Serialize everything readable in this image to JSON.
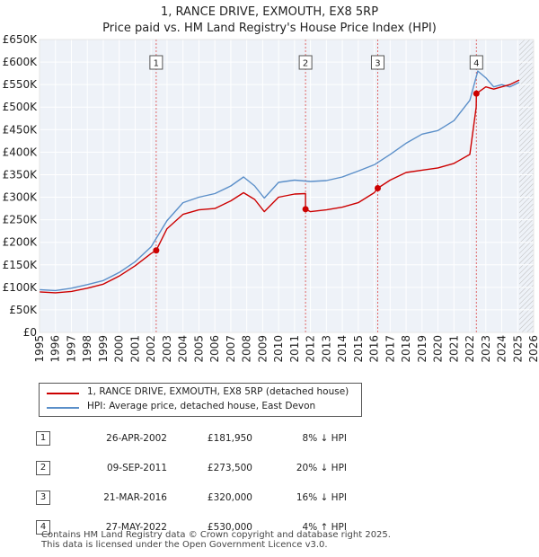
{
  "chart_data": {
    "type": "line",
    "title": "1, RANCE DRIVE, EXMOUTH, EX8 5RP",
    "subtitle": "Price paid vs. HM Land Registry's House Price Index (HPI)",
    "x_range": [
      1995,
      2026
    ],
    "x_ticks": [
      "1995",
      "1996",
      "1997",
      "1998",
      "1999",
      "2000",
      "2001",
      "2002",
      "2003",
      "2004",
      "2005",
      "2006",
      "2007",
      "2008",
      "2009",
      "2010",
      "2011",
      "2012",
      "2013",
      "2014",
      "2015",
      "2016",
      "2017",
      "2018",
      "2019",
      "2020",
      "2021",
      "2022",
      "2023",
      "2024",
      "2025",
      "2026"
    ],
    "y_range": [
      0,
      650000
    ],
    "y_ticks": [
      {
        "value": 0,
        "label": "£0"
      },
      {
        "value": 50000,
        "label": "£50K"
      },
      {
        "value": 100000,
        "label": "£100K"
      },
      {
        "value": 150000,
        "label": "£150K"
      },
      {
        "value": 200000,
        "label": "£200K"
      },
      {
        "value": 250000,
        "label": "£250K"
      },
      {
        "value": 300000,
        "label": "£300K"
      },
      {
        "value": 350000,
        "label": "£350K"
      },
      {
        "value": 400000,
        "label": "£400K"
      },
      {
        "value": 450000,
        "label": "£450K"
      },
      {
        "value": 500000,
        "label": "£500K"
      },
      {
        "value": 550000,
        "label": "£550K"
      },
      {
        "value": 600000,
        "label": "£600K"
      },
      {
        "value": 650000,
        "label": "£650K"
      }
    ],
    "grid": true,
    "future_hatch_from": 2025.1,
    "series": [
      {
        "name": "1, RANCE DRIVE, EXMOUTH, EX8 5RP (detached house)",
        "color": "#cc0000",
        "points": [
          [
            1995.0,
            90000
          ],
          [
            1996.0,
            88000
          ],
          [
            1997.0,
            91000
          ],
          [
            1998.0,
            98000
          ],
          [
            1999.0,
            107000
          ],
          [
            2000.0,
            125000
          ],
          [
            2001.0,
            148000
          ],
          [
            2002.0,
            175000
          ],
          [
            2002.32,
            181950
          ],
          [
            2003.0,
            230000
          ],
          [
            2004.0,
            262000
          ],
          [
            2005.0,
            272000
          ],
          [
            2006.0,
            275000
          ],
          [
            2007.0,
            292000
          ],
          [
            2007.8,
            310000
          ],
          [
            2008.5,
            295000
          ],
          [
            2009.1,
            268000
          ],
          [
            2010.0,
            300000
          ],
          [
            2011.0,
            307000
          ],
          [
            2011.69,
            308000
          ],
          [
            2011.69,
            273500
          ],
          [
            2012.0,
            268000
          ],
          [
            2013.0,
            272000
          ],
          [
            2014.0,
            278000
          ],
          [
            2015.0,
            288000
          ],
          [
            2016.0,
            310000
          ],
          [
            2016.22,
            320000
          ],
          [
            2017.0,
            338000
          ],
          [
            2018.0,
            355000
          ],
          [
            2019.0,
            360000
          ],
          [
            2020.0,
            365000
          ],
          [
            2021.0,
            375000
          ],
          [
            2022.0,
            395000
          ],
          [
            2022.4,
            500000
          ],
          [
            2022.41,
            530000
          ],
          [
            2023.0,
            545000
          ],
          [
            2023.5,
            540000
          ],
          [
            2024.0,
            545000
          ],
          [
            2024.5,
            550000
          ],
          [
            2025.1,
            560000
          ]
        ]
      },
      {
        "name": "HPI: Average price, detached house, East Devon",
        "color": "#5b8fc9",
        "points": [
          [
            1995.0,
            95000
          ],
          [
            1996.0,
            93000
          ],
          [
            1997.0,
            98000
          ],
          [
            1998.0,
            106000
          ],
          [
            1999.0,
            115000
          ],
          [
            2000.0,
            133000
          ],
          [
            2001.0,
            157000
          ],
          [
            2002.0,
            190000
          ],
          [
            2003.0,
            248000
          ],
          [
            2004.0,
            288000
          ],
          [
            2005.0,
            300000
          ],
          [
            2006.0,
            308000
          ],
          [
            2007.0,
            325000
          ],
          [
            2007.8,
            345000
          ],
          [
            2008.5,
            325000
          ],
          [
            2009.1,
            298000
          ],
          [
            2010.0,
            333000
          ],
          [
            2011.0,
            338000
          ],
          [
            2012.0,
            335000
          ],
          [
            2013.0,
            337000
          ],
          [
            2014.0,
            345000
          ],
          [
            2015.0,
            358000
          ],
          [
            2016.0,
            372000
          ],
          [
            2017.0,
            395000
          ],
          [
            2018.0,
            420000
          ],
          [
            2019.0,
            440000
          ],
          [
            2020.0,
            448000
          ],
          [
            2021.0,
            470000
          ],
          [
            2022.0,
            515000
          ],
          [
            2022.5,
            580000
          ],
          [
            2023.0,
            565000
          ],
          [
            2023.5,
            545000
          ],
          [
            2024.0,
            550000
          ],
          [
            2024.5,
            545000
          ],
          [
            2025.1,
            555000
          ]
        ]
      }
    ],
    "annotations": [
      {
        "label": "1",
        "date": 2002.32,
        "value": 181950
      },
      {
        "label": "2",
        "date": 2011.69,
        "value": 273500
      },
      {
        "label": "3",
        "date": 2016.22,
        "value": 320000
      },
      {
        "label": "4",
        "date": 2022.41,
        "value": 530000
      }
    ]
  },
  "legend": {
    "property_label": "1, RANCE DRIVE, EXMOUTH, EX8 5RP (detached house)",
    "hpi_label": "HPI: Average price, detached house, East Devon"
  },
  "transactions": [
    {
      "num": "1",
      "date": "26-APR-2002",
      "price": "£181,950",
      "hpi": "8% ↓ HPI"
    },
    {
      "num": "2",
      "date": "09-SEP-2011",
      "price": "£273,500",
      "hpi": "20% ↓ HPI"
    },
    {
      "num": "3",
      "date": "21-MAR-2016",
      "price": "£320,000",
      "hpi": "16% ↓ HPI"
    },
    {
      "num": "4",
      "date": "27-MAY-2022",
      "price": "£530,000",
      "hpi": "4% ↑ HPI"
    }
  ],
  "footer": {
    "line1": "Contains HM Land Registry data © Crown copyright and database right 2025.",
    "line2": "This data is licensed under the Open Government Licence v3.0."
  }
}
